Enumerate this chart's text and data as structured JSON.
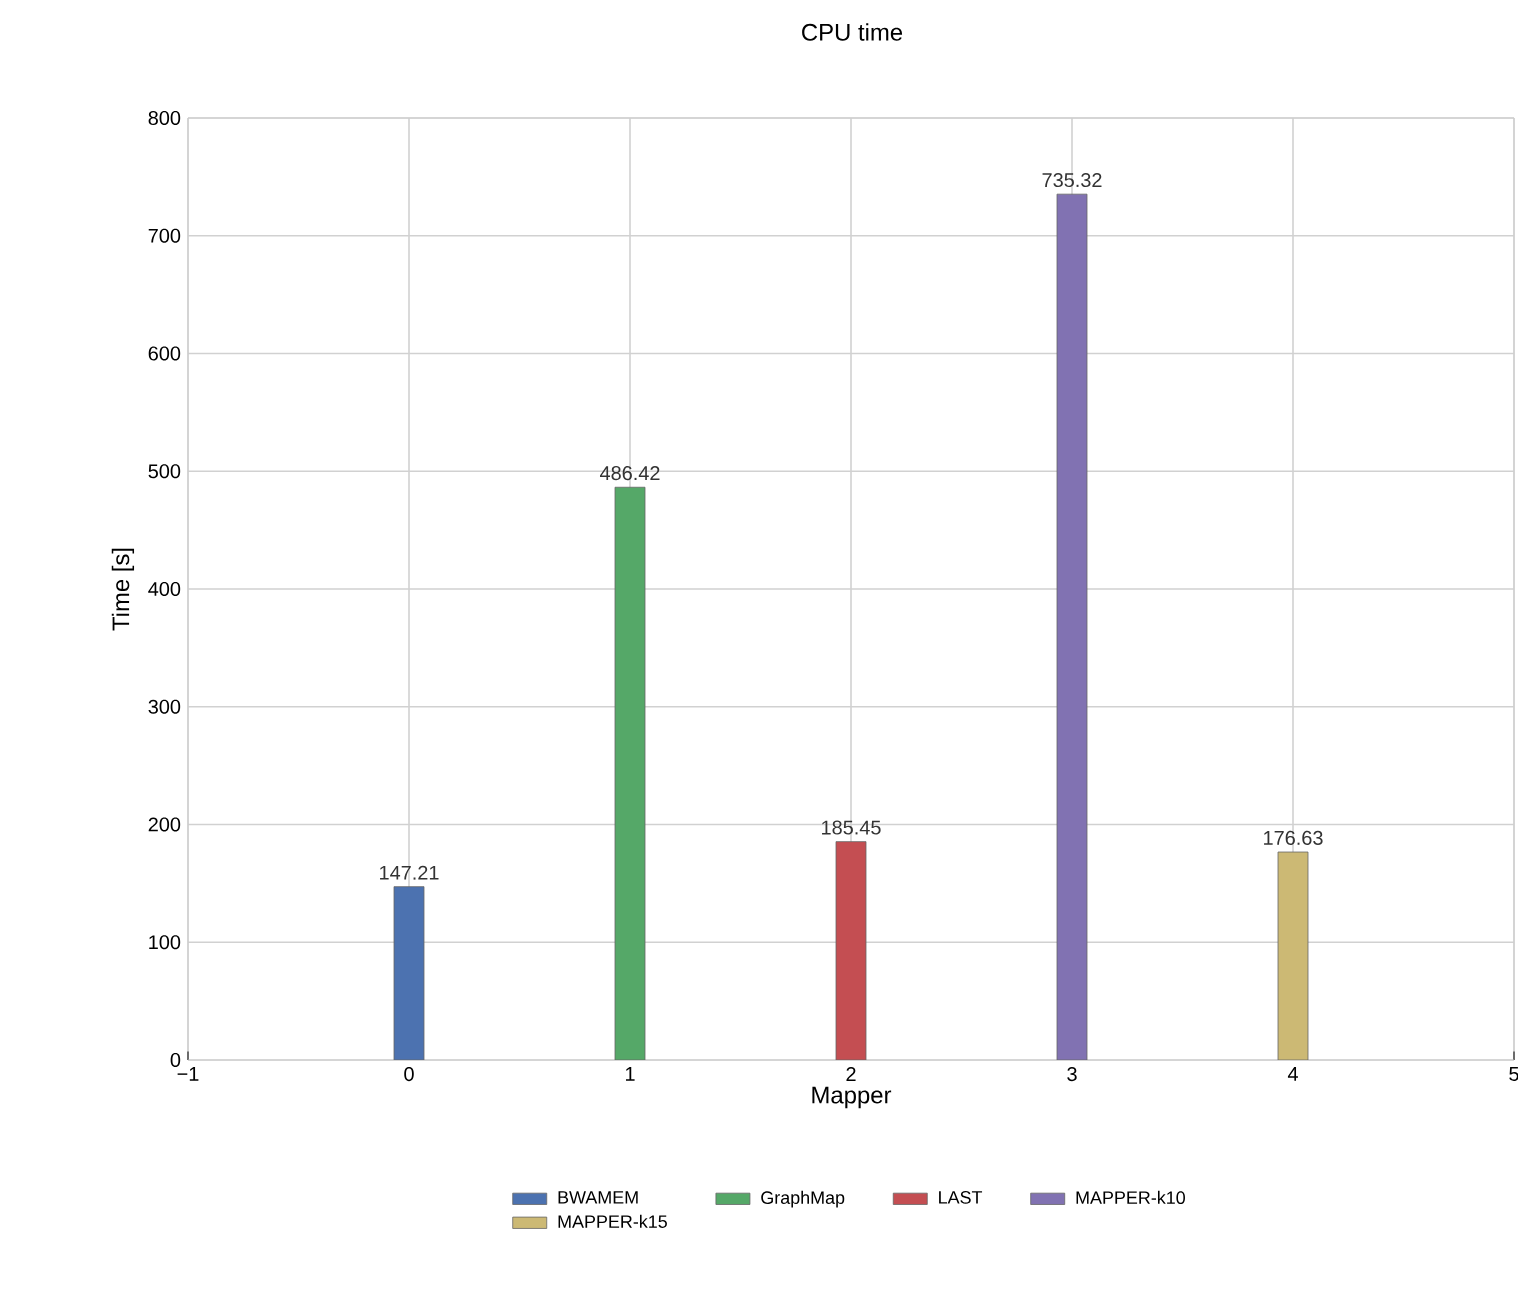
{
  "chart_data": {
    "type": "bar",
    "title": "CPU time",
    "xlabel": "Mapper",
    "ylabel": "Time [s]",
    "x": [
      0,
      1,
      2,
      3,
      4
    ],
    "series": [
      {
        "name": "BWAMEM",
        "color": "#4c72b0",
        "values": [
          147.21,
          null,
          null,
          null,
          null
        ]
      },
      {
        "name": "GraphMap",
        "color": "#55a868",
        "values": [
          null,
          486.42,
          null,
          null,
          null
        ]
      },
      {
        "name": "LAST",
        "color": "#c44e52",
        "values": [
          null,
          null,
          185.45,
          null,
          null
        ]
      },
      {
        "name": "MAPPER-k10",
        "color": "#8172b2",
        "values": [
          null,
          null,
          null,
          735.32,
          null
        ]
      },
      {
        "name": "MAPPER-k15",
        "color": "#ccb974",
        "values": [
          null,
          null,
          null,
          null,
          176.63
        ]
      }
    ],
    "xlim": [
      -1,
      5
    ],
    "xticks": [
      {
        "value": -1,
        "label": "−1"
      },
      0,
      1,
      2,
      3,
      4,
      5
    ],
    "ylim": [
      0,
      800
    ],
    "yticks": [
      0,
      100,
      200,
      300,
      400,
      500,
      600,
      700,
      800
    ],
    "grid": true,
    "legend": "bottom",
    "data_labels": true
  }
}
